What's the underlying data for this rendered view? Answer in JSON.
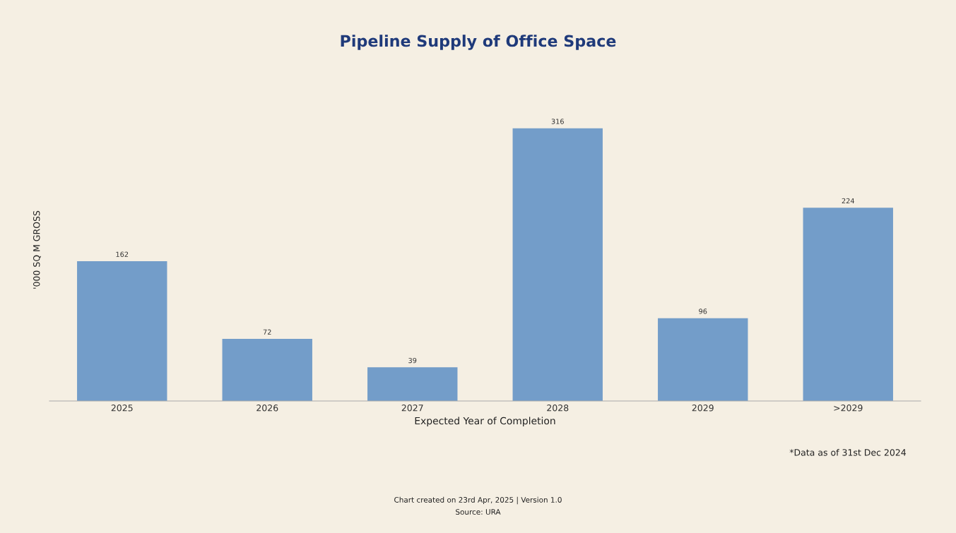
{
  "chart_data": {
    "type": "bar",
    "title": "Pipeline Supply of Office Space",
    "xlabel": "Expected Year of Completion",
    "ylabel": "'000 SQ M GROSS",
    "categories": [
      "2025",
      "2026",
      "2027",
      "2028",
      "2029",
      ">2029"
    ],
    "values": [
      162,
      72,
      39,
      316,
      96,
      224
    ],
    "color": "#739dc9",
    "data_labels": true,
    "grid": false,
    "tick_labels": "x",
    "annotations": [
      "*Data as of 31st Dec 2024",
      "Chart created on 23rd Apr, 2025 | Version 1.0",
      "Source: URA"
    ]
  }
}
